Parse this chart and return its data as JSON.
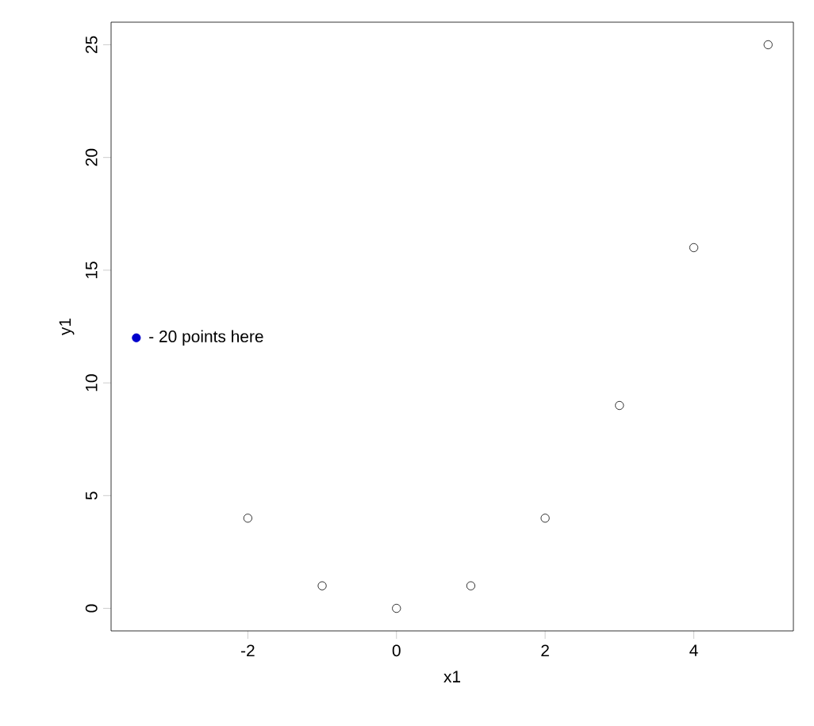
{
  "chart_data": {
    "type": "scatter",
    "xlabel": "x1",
    "ylabel": "y1",
    "marker": "circle",
    "grid": false,
    "xlim": [
      -3.84,
      5.34
    ],
    "ylim": [
      -1,
      26
    ],
    "xticks": [
      -2,
      0,
      2,
      4
    ],
    "yticks": [
      0,
      5,
      10,
      15,
      20,
      25
    ],
    "series": [
      {
        "color": "#000000",
        "x": [
          -2,
          -1,
          0,
          1,
          2,
          3,
          4,
          5
        ],
        "values": [
          4,
          1,
          0,
          1,
          4,
          9,
          16,
          25
        ]
      },
      {
        "color": "#0000cc",
        "x": [
          -3.5
        ],
        "values": [
          12
        ]
      }
    ],
    "annotations": [
      {
        "text": "- 20 points here",
        "x": -3.5,
        "y": 12
      }
    ]
  }
}
